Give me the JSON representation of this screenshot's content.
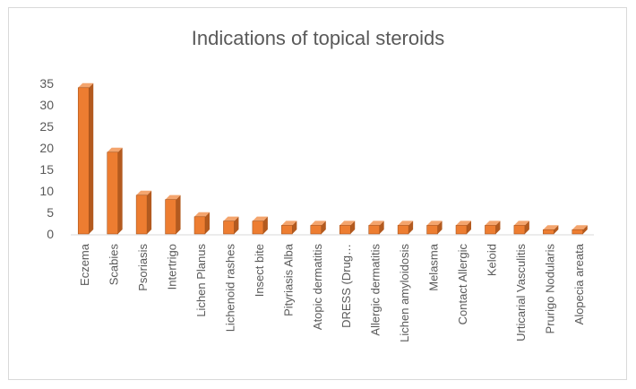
{
  "chart_data": {
    "type": "bar",
    "title": "Indications of topical steroids",
    "xlabel": "",
    "ylabel": "",
    "ylim": [
      0,
      35
    ],
    "yticks": [
      0,
      5,
      10,
      15,
      20,
      25,
      30,
      35
    ],
    "grid": false,
    "legend": "none",
    "categories": [
      "Eczema",
      "Scabies",
      "Psoriasis",
      "Intertrigo",
      "Lichen Planus",
      "Lichenoid rashes",
      "Insect bite",
      "Pityriasis Alba",
      "Atopic dermatitis",
      "DRESS (Drug…",
      "Allergic dermatitis",
      "Lichen amyloidosis",
      "Melasma",
      "Contact Allergic",
      "Keloid",
      "Urticarial Vasculitis",
      "Prurigo Nodularis",
      "Alopecia areata"
    ],
    "values": [
      34,
      19,
      9,
      8,
      4,
      3,
      3,
      2,
      2,
      2,
      2,
      2,
      2,
      2,
      2,
      2,
      1,
      1
    ],
    "colors": {
      "bar_front": "#ed7d31",
      "bar_side": "#b35a1f",
      "bar_top": "#f4a56e",
      "bar_edge": "#9c4a14",
      "text": "#595959",
      "axis": "#d9d9d9"
    }
  }
}
